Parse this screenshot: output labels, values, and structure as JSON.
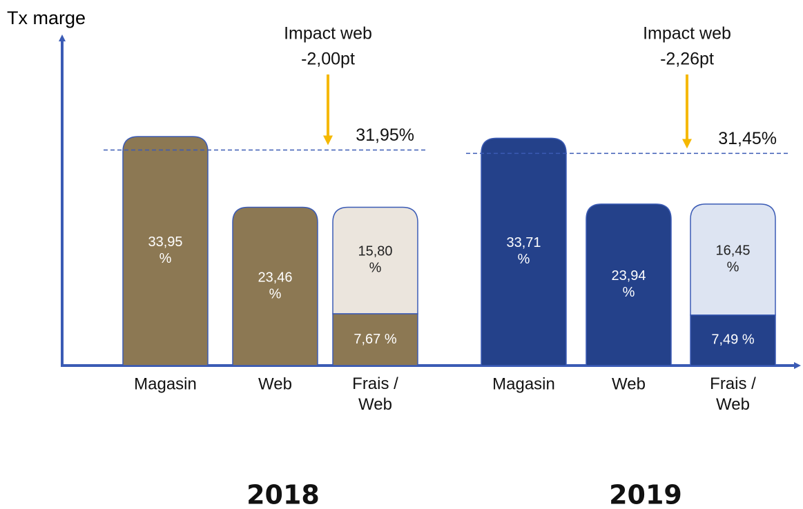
{
  "y_axis_label": "Tx marge",
  "chart_data": [
    {
      "type": "bar",
      "title": "2018",
      "categories": [
        "Magasin",
        "Web",
        "Frais / Web"
      ],
      "values": [
        33.95,
        23.46,
        7.67
      ],
      "value_labels": [
        "33,95 %",
        "23,46 %",
        "7,67 %"
      ],
      "stacked": {
        "value": 15.8,
        "label": "15,80 %"
      },
      "color": "#8c7853",
      "light_color": "#ebe5dd",
      "reference": {
        "value": 31.95,
        "label": "31,95%"
      },
      "annotation": [
        "Impact web",
        "-2,00pt"
      ]
    },
    {
      "type": "bar",
      "title": "2019",
      "categories": [
        "Magasin",
        "Web",
        "Frais / Web"
      ],
      "values": [
        33.71,
        23.94,
        7.49
      ],
      "value_labels": [
        "33,71 %",
        "23,94 %",
        "7,49 %"
      ],
      "stacked": {
        "value": 16.45,
        "label": "16,45 %"
      },
      "color": "#24418a",
      "light_color": "#dde4f2",
      "reference": {
        "value": 31.45,
        "label": "31,45%"
      },
      "annotation": [
        "Impact web",
        "-2,26pt"
      ]
    }
  ]
}
